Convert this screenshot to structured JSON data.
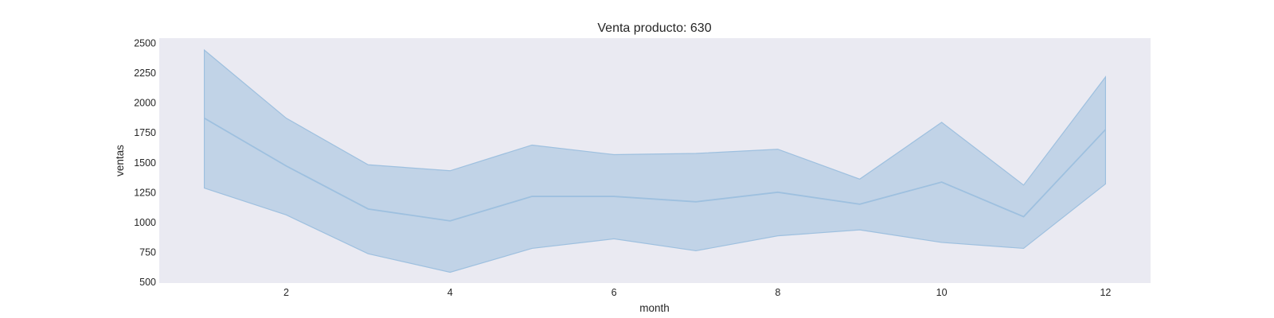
{
  "chart_data": {
    "type": "line",
    "title": "Venta producto: 630",
    "xlabel": "month",
    "ylabel": "ventas",
    "x": [
      1,
      2,
      3,
      4,
      5,
      6,
      7,
      8,
      9,
      10,
      11,
      12
    ],
    "series": [
      {
        "values": [
          1870,
          1470,
          1110,
          1010,
          1215,
          1215,
          1170,
          1250,
          1150,
          1335,
          1045,
          1775
        ],
        "ci_upper": [
          2440,
          1870,
          1480,
          1430,
          1645,
          1565,
          1575,
          1610,
          1360,
          1835,
          1310,
          2215
        ],
        "ci_lower": [
          1285,
          1060,
          735,
          580,
          780,
          860,
          760,
          885,
          935,
          830,
          780,
          1320
        ],
        "color": "#9ec0df"
      }
    ],
    "xticks": [
      2,
      4,
      6,
      8,
      10,
      12
    ],
    "yticks": [
      500,
      750,
      1000,
      1250,
      1500,
      1750,
      2000,
      2250,
      2500
    ],
    "xlim": [
      0.45,
      12.55
    ],
    "ylim": [
      490,
      2540
    ],
    "grid": false,
    "background_color": "#eaeaf2",
    "band_color": "#9ec0df"
  }
}
